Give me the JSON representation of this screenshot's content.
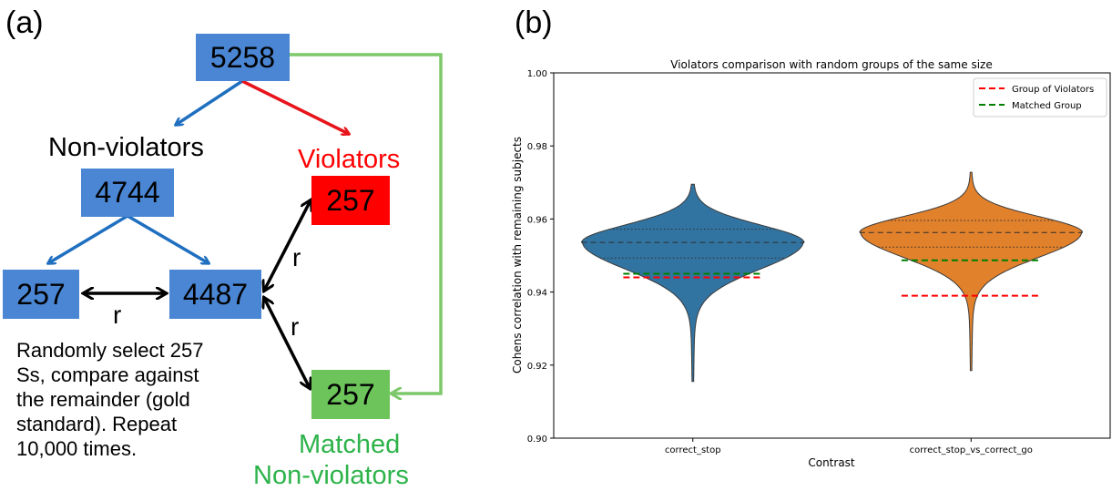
{
  "panel_a": {
    "label": "(a)",
    "total": "5258",
    "nonviolators_label": "Non-violators",
    "nonviolators": "4744",
    "sample": "257",
    "remainder": "4487",
    "violators_label": "Violators",
    "violators": "257",
    "matched": "257",
    "matched_label_1": "Matched",
    "matched_label_2": "Non-violators",
    "r_label": "r",
    "note_lines": [
      "Randomly select 257",
      "Ss, compare against",
      "the remainder (gold",
      "standard). Repeat",
      "10,000 times."
    ],
    "colors": {
      "blue_box": "#4a86d4",
      "red_box": "#ff0000",
      "green_box": "#6cc45a",
      "blue_arrow": "#1f6fc0",
      "red_arrow": "#e8141b",
      "green_arrow": "#7cc86a",
      "violators_text": "#ff0000",
      "matched_text": "#2db34a"
    }
  },
  "panel_b": {
    "label": "(b)"
  },
  "chart_data": {
    "type": "violin",
    "title": "Violators comparison with random groups of the same size",
    "xlabel": "Contrast",
    "ylabel": "Cohens correlation with remaining subjects",
    "categories": [
      "correct_stop",
      "correct_stop_vs_correct_go"
    ],
    "ylim": [
      0.9,
      1.0
    ],
    "yticks": [
      "0.90",
      "0.92",
      "0.94",
      "0.96",
      "0.98",
      "1.00"
    ],
    "violins": [
      {
        "category": "correct_stop",
        "min": 0.9155,
        "max": 0.9695,
        "q1": 0.9493,
        "median": 0.9536,
        "q3": 0.9572,
        "color": "#3274a1"
      },
      {
        "category": "correct_stop_vs_correct_go",
        "min": 0.9185,
        "max": 0.9728,
        "q1": 0.9523,
        "median": 0.9563,
        "q3": 0.9596,
        "color": "#e1812c"
      }
    ],
    "reference_lines": [
      {
        "name": "Group of Violators",
        "color": "#ff0000",
        "values": [
          0.944,
          0.939
        ]
      },
      {
        "name": "Matched Group",
        "color": "#008000",
        "values": [
          0.945,
          0.9487
        ]
      }
    ],
    "legend_position": "top-right",
    "grid": false
  }
}
